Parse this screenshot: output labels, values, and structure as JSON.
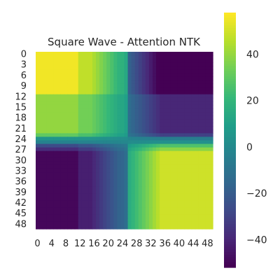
{
  "chart_data": {
    "type": "heatmap",
    "title": "Square Wave - Attention NTK",
    "xlabel": "",
    "ylabel": "",
    "n_rows": 50,
    "n_cols": 50,
    "x_ticks": [
      "0",
      "4",
      "8",
      "12",
      "16",
      "20",
      "24",
      "28",
      "32",
      "36",
      "40",
      "44",
      "48"
    ],
    "y_ticks": [
      "0",
      "3",
      "6",
      "9",
      "12",
      "15",
      "18",
      "21",
      "24",
      "27",
      "30",
      "33",
      "36",
      "39",
      "42",
      "45",
      "48"
    ],
    "colormap": "viridis",
    "vmin": -52,
    "vmax": 58,
    "colorbar_ticks": [
      "40",
      "20",
      "0",
      "−20",
      "−40"
    ],
    "colorbar_tick_values": [
      40,
      20,
      0,
      -20,
      -40
    ],
    "grid": false,
    "structure": "Block structure: rows/cols 0-11 strongly positive in top-left (~52-58), rows 12-23 moderately positive (~35-42); around index 24-26 values near 0 (teal transition band); rows 26-49 against cols 0-24 strongly negative (~-45 to -52); bottom-right block rows 26-49 x cols 28-49 strongly positive (~45-58); top-right block rows 0-23 x cols 28-49 negative (~-30 to -50). Values vary smoothly within blocks (darker toward far corners)."
  }
}
